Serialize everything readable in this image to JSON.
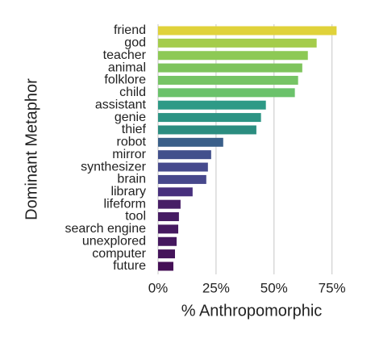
{
  "chart_data": {
    "type": "bar",
    "orientation": "horizontal",
    "ylabel": "Dominant Metaphor",
    "xlabel": "% Anthropomorphic",
    "categories": [
      "friend",
      "god",
      "teacher",
      "animal",
      "folklore",
      "child",
      "assistant",
      "genie",
      "thief",
      "robot",
      "mirror",
      "synthesizer",
      "brain",
      "library",
      "lifeform",
      "tool",
      "search engine",
      "unexplored",
      "computer",
      "future"
    ],
    "values": [
      77,
      68.4,
      64.6,
      62.2,
      60.4,
      59,
      46.5,
      44.4,
      42.4,
      28.1,
      22.9,
      21.5,
      20.8,
      14.9,
      9.7,
      9.0,
      8.7,
      8.0,
      7.3,
      6.6
    ],
    "colors": [
      "#e0d23a",
      "#a5cc4b",
      "#8dc955",
      "#7ec45c",
      "#76c465",
      "#6bc26b",
      "#2e9a86",
      "#2d9484",
      "#2b8d80",
      "#3a5f89",
      "#42508c",
      "#464a8d",
      "#47488c",
      "#472f7d",
      "#471e66",
      "#461c63",
      "#461a61",
      "#45185f",
      "#44145a",
      "#440f56"
    ],
    "xlim": [
      0,
      80
    ],
    "xticks": [
      {
        "value": 0,
        "label": "0%"
      },
      {
        "value": 25,
        "label": "25%"
      },
      {
        "value": 50,
        "label": "50%"
      },
      {
        "value": 75,
        "label": "75%"
      }
    ],
    "grid": true
  }
}
